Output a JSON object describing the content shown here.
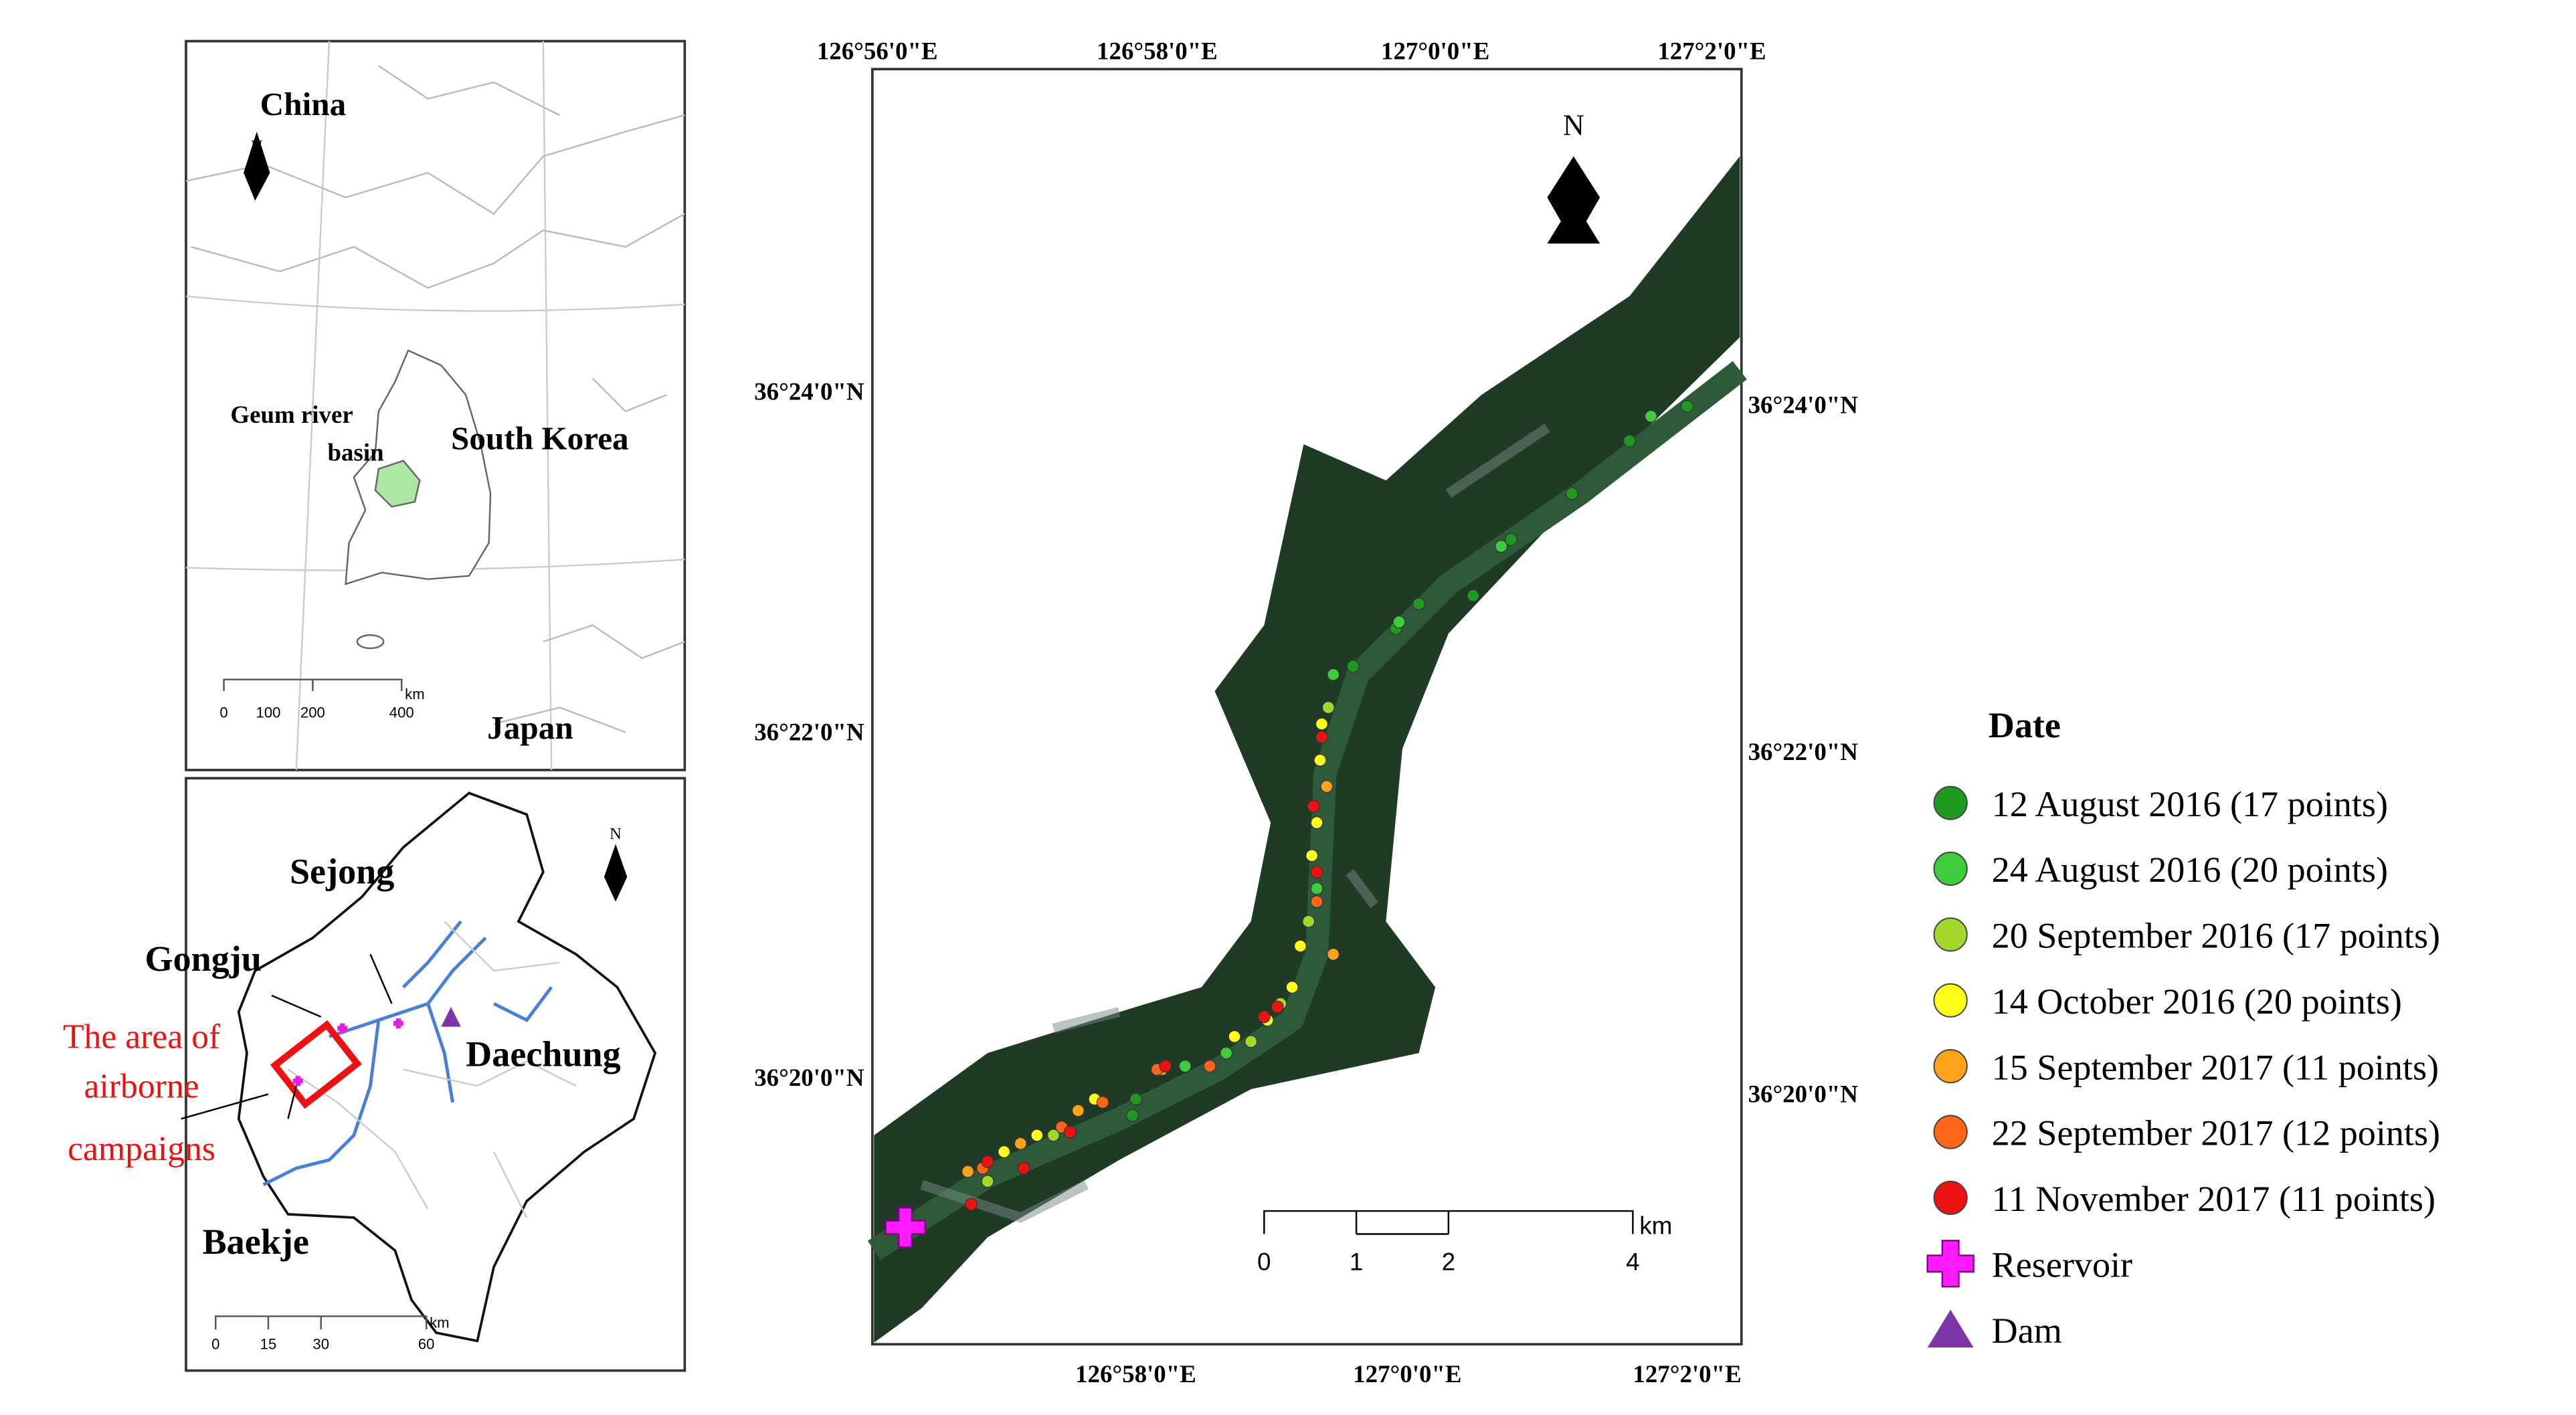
{
  "inset_map": {
    "labels": {
      "china": "China",
      "south_korea": "South Korea",
      "japan": "Japan",
      "geum": [
        "Geum river",
        "basin"
      ]
    },
    "north": "N",
    "scale": {
      "ticks": [
        0,
        100,
        200,
        400
      ],
      "unit": "km"
    }
  },
  "basin_map": {
    "labels": {
      "sejong": "Sejong",
      "gongju": "Gongju",
      "daechung": "Daechung",
      "baekje": "Baekje"
    },
    "campaign_area": [
      "The area of",
      "airborne",
      "campaigns"
    ],
    "north": "N",
    "scale": {
      "ticks": [
        0,
        15,
        30,
        60
      ],
      "unit": "km"
    }
  },
  "main_map": {
    "north": "N",
    "top_longitudes": [
      "126°56'0\"E",
      "126°58'0\"E",
      "127°0'0\"E",
      "127°2'0\"E"
    ],
    "bottom_longitudes": [
      "126°58'0\"E",
      "127°0'0\"E",
      "127°2'0\"E"
    ],
    "left_latitudes": [
      "36°24'0\"N",
      "36°22'0\"N",
      "36°20'0\"N"
    ],
    "right_latitudes": [
      "36°24'0\"N",
      "36°22'0\"N",
      "36°20'0\"N"
    ],
    "scale": {
      "ticks": [
        0,
        1,
        2,
        4
      ],
      "unit": "km"
    }
  },
  "legend": {
    "title": "Date",
    "items": [
      {
        "label": "12 August 2016 (17 points)",
        "color": "#1e9a1e",
        "shape": "circle"
      },
      {
        "label": "24 August 2016 (20 points)",
        "color": "#3ccc3c",
        "shape": "circle"
      },
      {
        "label": "20 September 2016 (17 points)",
        "color": "#a2d82a",
        "shape": "circle"
      },
      {
        "label": "14 October 2016 (20 points)",
        "color": "#ffff1a",
        "shape": "circle"
      },
      {
        "label": "15 September 2017 (11 points)",
        "color": "#ffa31a",
        "shape": "circle"
      },
      {
        "label": "22 September 2017 (12 points)",
        "color": "#ff661a",
        "shape": "circle"
      },
      {
        "label": "11 November 2017 (11 points)",
        "color": "#ee1111",
        "shape": "circle"
      },
      {
        "label": "Reservoir",
        "color": "#ff1aff",
        "shape": "plus"
      },
      {
        "label": "Dam",
        "color": "#7b35a8",
        "shape": "triangle"
      }
    ]
  }
}
